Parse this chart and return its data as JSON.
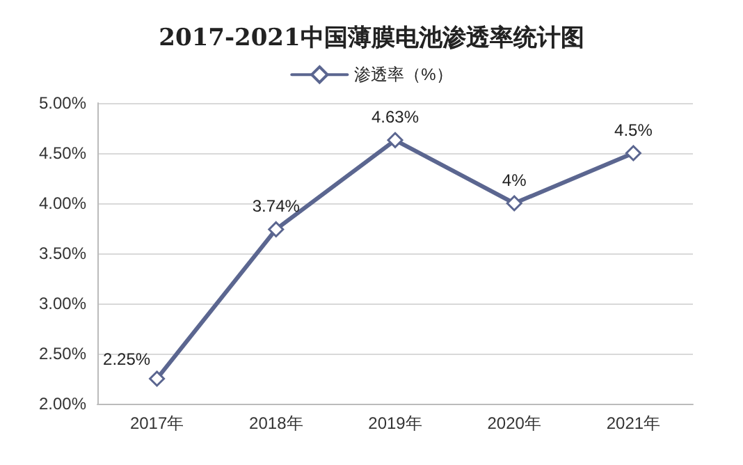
{
  "chart_data": {
    "type": "line",
    "title": "2017-2021中国薄膜电池渗透率统计图",
    "categories": [
      "2017年",
      "2018年",
      "2019年",
      "2020年",
      "2021年"
    ],
    "series": [
      {
        "name": "渗透率（%）",
        "color": "#5b6690",
        "values": [
          2.25,
          3.74,
          4.63,
          4,
          4.5
        ],
        "value_labels": [
          "2.25%",
          "3.74%",
          "4.63%",
          "4%",
          "4.5%"
        ]
      }
    ],
    "ylim": [
      2,
      5
    ],
    "yticks": [
      {
        "value": 2,
        "label": "2.00%"
      },
      {
        "value": 2.5,
        "label": "2.50%"
      },
      {
        "value": 3,
        "label": "3.00%"
      },
      {
        "value": 3.5,
        "label": "3.50%"
      },
      {
        "value": 4,
        "label": "4.00%"
      },
      {
        "value": 4.5,
        "label": "4.50%"
      },
      {
        "value": 5,
        "label": "5.00%"
      }
    ],
    "grid": "y",
    "legend": "top",
    "marker": "diamond",
    "line_style": "solid"
  }
}
